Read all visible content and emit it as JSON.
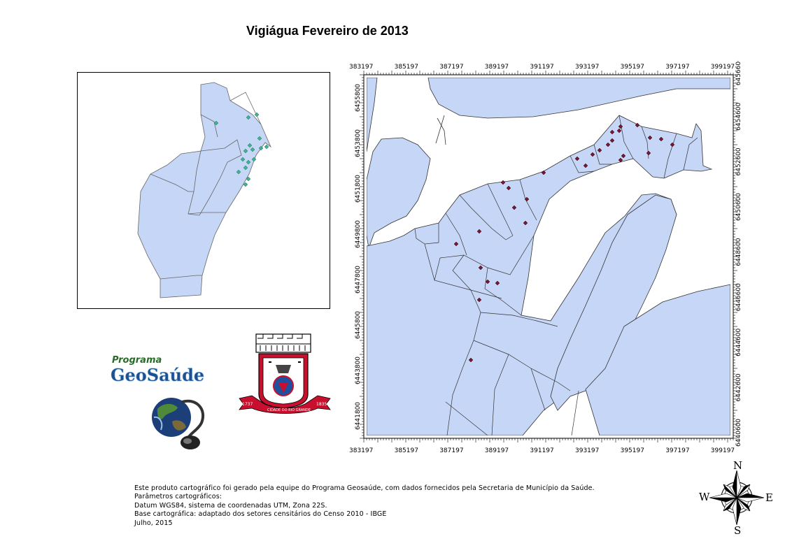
{
  "title": "Vigiágua Fevereiro de 2013",
  "map": {
    "x_ticks": [
      "383197",
      "385197",
      "387197",
      "389197",
      "391197",
      "393197",
      "395197",
      "397197",
      "399197"
    ],
    "y_ticks": [
      "6441800",
      "6443800",
      "6445800",
      "6447800",
      "6449800",
      "6451800",
      "6453800",
      "6455800"
    ],
    "y_ticks_right": [
      "6440600",
      "6442600",
      "6444600",
      "6446600",
      "6448600",
      "6450600",
      "6452600",
      "6454600",
      "6456600"
    ],
    "water_color": "#c6d6f6",
    "point_color": "#7a1432",
    "inset_point_color": "#3bb38f",
    "points_count_note": ""
  },
  "logos": {
    "geosaude_line1": "Programa",
    "geosaude_line2": "GeoSaúde",
    "crest_ribbon_left": "1737",
    "crest_ribbon_center": "CIDADE DO RIO GRANDE",
    "crest_ribbon_right": "1835"
  },
  "footer": {
    "line1": "Este produto cartográfico foi gerado pela equipe do Programa Geosaúde, com dados fornecidos pela Secretaria de Município da Saúde.",
    "line2": "Parâmetros cartográficos:",
    "line3": "Datum WGS84, sistema de coordenadas UTM, Zona 22S.",
    "line4": "Base cartográfica: adaptado dos setores censitários do Censo 2010 - IBGE",
    "line5": "Julho, 2015"
  },
  "compass": {
    "n": "N",
    "s": "S",
    "e": "E",
    "w": "W"
  }
}
